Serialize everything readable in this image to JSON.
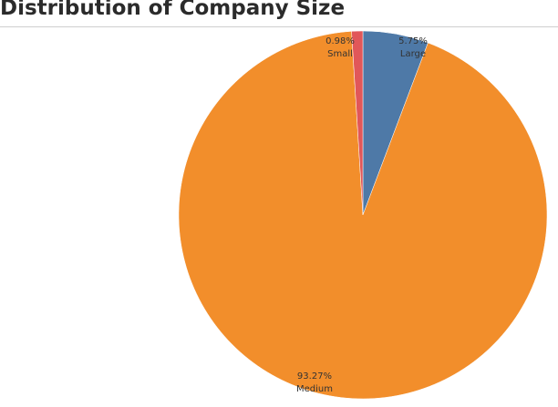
{
  "chart_data": {
    "type": "pie",
    "title": "Distribution of Company Size",
    "slices": [
      {
        "label": "Large",
        "value": 5.75,
        "value_text": "5.75%",
        "color": "#4e79a7"
      },
      {
        "label": "Medium",
        "value": 93.27,
        "value_text": "93.27%",
        "color": "#f28e2b"
      },
      {
        "label": "Small",
        "value": 0.98,
        "value_text": "0.98%",
        "color": "#e15759"
      }
    ]
  }
}
